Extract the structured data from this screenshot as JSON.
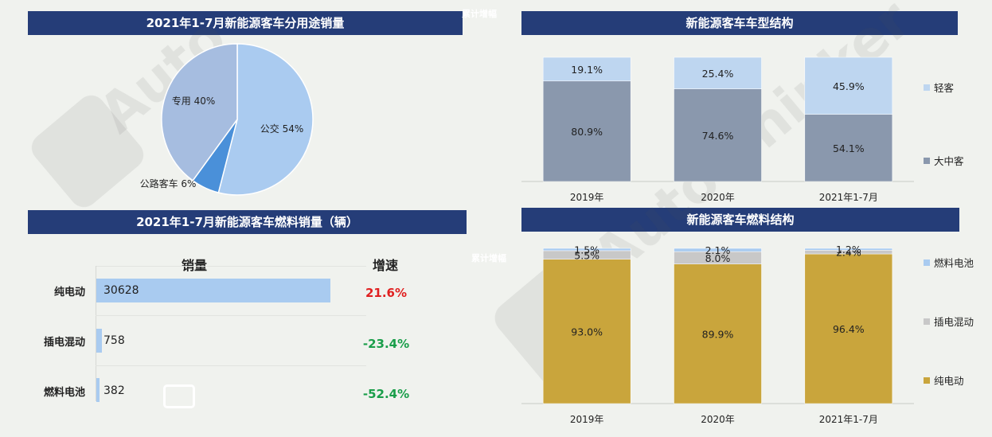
{
  "overlay_labels": {
    "cumulative_growth": "累计增幅"
  },
  "colors": {
    "banner": "#253d78",
    "pie_bus": "#aacbf0",
    "pie_special": "#a6bde0",
    "pie_highway": "#4a90d9",
    "bus_large": "#8a98ad",
    "bus_light": "#bed6f0",
    "fuel_bev": "#c9a53c",
    "fuel_phev": "#c8c8c8",
    "fuel_fcev": "#a9cbf0",
    "bar_fill": "#a9cbf0",
    "positive": "#e02020",
    "negative": "#1a9e4a"
  },
  "chart_data": [
    {
      "id": "usage_pie",
      "type": "pie",
      "title": "2021年1-7月新能源客车分用途销量",
      "slices": [
        {
          "label": "公交",
          "value": 54,
          "display": "公交 54%"
        },
        {
          "label": "公路客车",
          "value": 6,
          "display": "公路客车 6%"
        },
        {
          "label": "专用",
          "value": 40,
          "display": "专用 40%"
        }
      ]
    },
    {
      "id": "vehicle_type",
      "type": "bar",
      "stacked": true,
      "percent": true,
      "title": "新能源客车车型结构",
      "categories": [
        "2019年",
        "2020年",
        "2021年1-7月"
      ],
      "series": [
        {
          "name": "大中客",
          "values": [
            80.9,
            74.6,
            54.1
          ],
          "labels": [
            "80.9%",
            "74.6%",
            "54.1%"
          ]
        },
        {
          "name": "轻客",
          "values": [
            19.1,
            25.4,
            45.9
          ],
          "labels": [
            "19.1%",
            "25.4%",
            "45.9%"
          ]
        }
      ],
      "legend": "right"
    },
    {
      "id": "fuel_sales",
      "type": "bar",
      "orientation": "horizontal",
      "title": "2021年1-7月新能源客车燃料销量（辆）",
      "columns": {
        "sales": "销量",
        "growth": "增速"
      },
      "categories": [
        "纯电动",
        "插电混动",
        "燃料电池"
      ],
      "values": [
        30628,
        758,
        382
      ],
      "value_labels": [
        "30628",
        "758",
        "382"
      ],
      "growth": [
        "21.6%",
        "-23.4%",
        "-52.4%"
      ],
      "growth_sign": [
        1,
        -1,
        -1
      ],
      "xlim": [
        0,
        30628
      ]
    },
    {
      "id": "fuel_structure",
      "type": "bar",
      "stacked": true,
      "percent": true,
      "title": "新能源客车燃料结构",
      "categories": [
        "2019年",
        "2020年",
        "2021年1-7月"
      ],
      "series": [
        {
          "name": "纯电动",
          "values": [
            93.0,
            89.9,
            96.4
          ],
          "labels": [
            "93.0%",
            "89.9%",
            "96.4%"
          ]
        },
        {
          "name": "插电混动",
          "values": [
            5.5,
            8.0,
            2.4
          ],
          "labels": [
            "5.5%",
            "8.0%",
            "2.4%"
          ]
        },
        {
          "name": "燃料电池",
          "values": [
            1.5,
            2.1,
            1.2
          ],
          "labels": [
            "1.5%",
            "2.1%",
            "1.2%"
          ]
        }
      ],
      "legend": "right"
    }
  ]
}
